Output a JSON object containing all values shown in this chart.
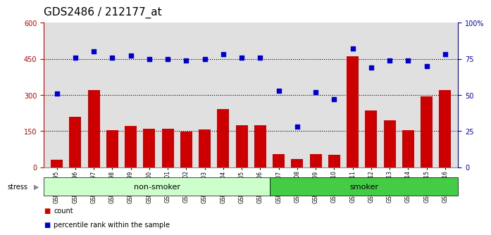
{
  "title": "GDS2486 / 212177_at",
  "samples": [
    "GSM101095",
    "GSM101096",
    "GSM101097",
    "GSM101098",
    "GSM101099",
    "GSM101100",
    "GSM101101",
    "GSM101102",
    "GSM101103",
    "GSM101104",
    "GSM101105",
    "GSM101106",
    "GSM101107",
    "GSM101108",
    "GSM101109",
    "GSM101110",
    "GSM101111",
    "GSM101112",
    "GSM101113",
    "GSM101114",
    "GSM101115",
    "GSM101116"
  ],
  "counts": [
    30,
    210,
    320,
    155,
    170,
    160,
    160,
    148,
    157,
    240,
    175,
    175,
    55,
    35,
    55,
    50,
    460,
    235,
    195,
    155,
    295,
    320
  ],
  "percentile_ranks": [
    51,
    76,
    80,
    76,
    77,
    75,
    75,
    74,
    75,
    78,
    76,
    76,
    53,
    28,
    52,
    47,
    82,
    69,
    74,
    74,
    70,
    78
  ],
  "non_smoker_count": 12,
  "bar_color": "#cc0000",
  "dot_color": "#0000cc",
  "left_yticks": [
    0,
    150,
    300,
    450,
    600
  ],
  "right_yticks": [
    0,
    25,
    50,
    75,
    100
  ],
  "non_smoker_color": "#ccffcc",
  "smoker_color": "#44cc44",
  "stress_label": "stress",
  "non_smoker_label": "non-smoker",
  "smoker_label": "smoker",
  "legend_count_label": "count",
  "legend_pct_label": "percentile rank within the sample",
  "ylim_left": [
    0,
    600
  ],
  "ylim_right": [
    0,
    100
  ],
  "bg_color": "#e0e0e0",
  "title_fontsize": 11,
  "tick_fontsize": 7,
  "label_fontsize": 8
}
